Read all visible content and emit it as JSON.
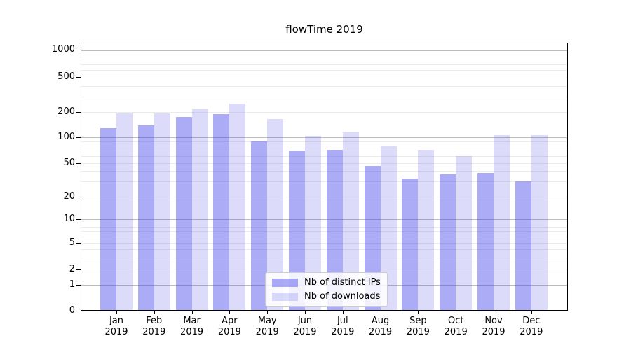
{
  "chart_data": {
    "type": "bar",
    "title": "flowTime 2019",
    "categories": [
      "Jan",
      "Feb",
      "Mar",
      "Apr",
      "May",
      "Jun",
      "Jul",
      "Aug",
      "Sep",
      "Oct",
      "Nov",
      "Dec"
    ],
    "category_sublabel": "2019",
    "series": [
      {
        "name": "Nb of distinct IPs",
        "color": "#4646eb",
        "alpha": 0.45,
        "values": [
          130,
          141,
          175,
          192,
          89,
          70,
          72,
          46,
          33,
          37,
          38,
          30
        ]
      },
      {
        "name": "Nb of downloads",
        "color": "#5050e6",
        "alpha": 0.2,
        "values": [
          195,
          195,
          218,
          252,
          168,
          105,
          115,
          78,
          72,
          60,
          107,
          107
        ]
      }
    ],
    "yscale": "symlog",
    "yticks": [
      0,
      1,
      2,
      5,
      10,
      20,
      50,
      100,
      200,
      500,
      1000
    ],
    "ylim": [
      0,
      1500
    ],
    "xlabel": "",
    "ylabel": "",
    "grid": true,
    "legend_position": "lower center",
    "colors": {
      "major_grid": "#bcbcbc",
      "minor_grid": "#ebebeb",
      "axis": "#000000",
      "text": "#000000",
      "legend_border": "#cccccc",
      "legend_bg": "#ffffff"
    }
  }
}
